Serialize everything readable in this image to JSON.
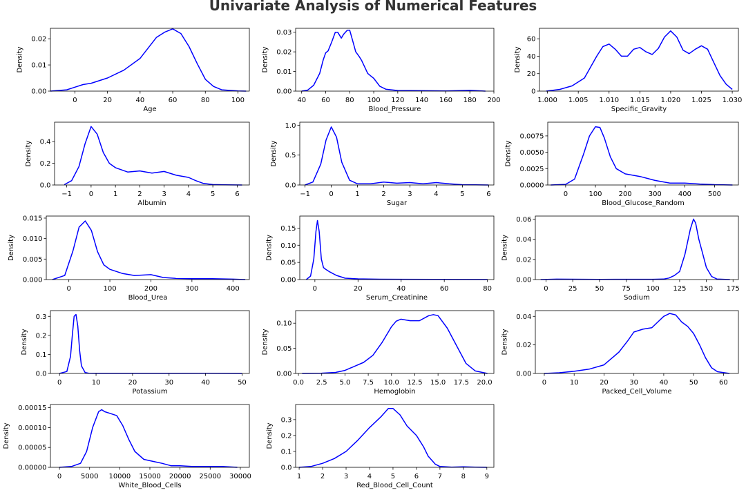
{
  "title": "Univariate Analysis of Numerical Features",
  "line_color": "#0000ff",
  "chart_data": [
    {
      "type": "line",
      "xlabel": "Age",
      "ylabel": "Density",
      "xlim": [
        -15,
        107
      ],
      "ylim": [
        0,
        0.024
      ],
      "xticks": [
        0,
        20,
        40,
        60,
        80,
        100
      ],
      "yticks": [
        0,
        0.01,
        0.02
      ],
      "ytick_labels": [
        "0.00",
        "0.01",
        "0.02"
      ],
      "x": [
        -15,
        -5,
        0,
        5,
        10,
        20,
        30,
        40,
        45,
        50,
        55,
        60,
        65,
        70,
        75,
        80,
        85,
        90,
        100,
        105
      ],
      "y": [
        0,
        0.0005,
        0.0015,
        0.0025,
        0.003,
        0.005,
        0.008,
        0.0125,
        0.0165,
        0.0205,
        0.0225,
        0.0238,
        0.022,
        0.017,
        0.0105,
        0.0045,
        0.0018,
        0.0005,
        5e-05,
        0
      ]
    },
    {
      "type": "line",
      "xlabel": "Blood_Pressure",
      "ylabel": "Density",
      "xlim": [
        35,
        200
      ],
      "ylim": [
        0,
        0.032
      ],
      "xticks": [
        40,
        60,
        80,
        100,
        120,
        140,
        160,
        180,
        200
      ],
      "yticks": [
        0,
        0.01,
        0.02,
        0.03
      ],
      "ytick_labels": [
        "0.00",
        "0.01",
        "0.02",
        "0.03"
      ],
      "x": [
        40,
        45,
        50,
        55,
        58,
        60,
        62,
        65,
        68,
        70,
        73,
        75,
        78,
        80,
        83,
        85,
        88,
        90,
        95,
        98,
        100,
        105,
        110,
        120,
        140,
        160,
        180,
        193
      ],
      "y": [
        0,
        0.0005,
        0.003,
        0.009,
        0.016,
        0.0195,
        0.0205,
        0.025,
        0.03,
        0.03,
        0.027,
        0.029,
        0.031,
        0.031,
        0.0245,
        0.02,
        0.0175,
        0.0155,
        0.009,
        0.0075,
        0.0065,
        0.0025,
        0.001,
        0.0003,
        0.0002,
        0.0001,
        0.0004,
        0
      ]
    },
    {
      "type": "line",
      "xlabel": "Specific_Gravity",
      "ylabel": "Density",
      "xlim": [
        0.9987,
        1.031
      ],
      "ylim": [
        0,
        72
      ],
      "xticks": [
        1.0,
        1.005,
        1.01,
        1.015,
        1.02,
        1.025,
        1.03
      ],
      "yticks": [
        0,
        20,
        40,
        60
      ],
      "ytick_labels": [
        "0",
        "20",
        "40",
        "60"
      ],
      "xtick_labels": [
        "1.000",
        "1.005",
        "1.010",
        "1.015",
        "1.020",
        "1.025",
        "1.030"
      ],
      "x": [
        0.9998,
        1.002,
        1.004,
        1.006,
        1.008,
        1.009,
        1.01,
        1.011,
        1.012,
        1.013,
        1.014,
        1.015,
        1.016,
        1.017,
        1.018,
        1.019,
        1.02,
        1.021,
        1.022,
        1.023,
        1.024,
        1.025,
        1.026,
        1.027,
        1.028,
        1.029,
        1.03
      ],
      "y": [
        0,
        2,
        6,
        15,
        40,
        51,
        54,
        48,
        40,
        40,
        48,
        50,
        45,
        42,
        49,
        62,
        69,
        62,
        47,
        43,
        48,
        52,
        48,
        33,
        18,
        8,
        2
      ]
    },
    {
      "type": "line",
      "xlabel": "Albumin",
      "ylabel": "Density",
      "xlim": [
        -1.5,
        6.5
      ],
      "ylim": [
        0,
        0.58
      ],
      "xticks": [
        -1,
        0,
        1,
        2,
        3,
        4,
        5,
        6
      ],
      "yticks": [
        0,
        0.2,
        0.4
      ],
      "ytick_labels": [
        "0.0",
        "0.2",
        "0.4"
      ],
      "xtick_labels": [
        "−1",
        "0",
        "1",
        "2",
        "3",
        "4",
        "5",
        "6"
      ],
      "x": [
        -1.1,
        -0.8,
        -0.5,
        -0.25,
        0,
        0.25,
        0.5,
        0.75,
        1,
        1.5,
        2,
        2.5,
        3,
        3.5,
        4,
        4.3,
        4.6,
        5,
        5.5,
        6.2
      ],
      "y": [
        0.003,
        0.04,
        0.17,
        0.38,
        0.54,
        0.47,
        0.3,
        0.2,
        0.16,
        0.12,
        0.13,
        0.11,
        0.125,
        0.09,
        0.07,
        0.04,
        0.015,
        0.004,
        0.001,
        0
      ]
    },
    {
      "type": "line",
      "xlabel": "Sugar",
      "ylabel": "Density",
      "xlim": [
        -1.2,
        6.2
      ],
      "ylim": [
        0,
        1.05
      ],
      "xticks": [
        -1,
        0,
        1,
        2,
        3,
        4,
        5,
        6
      ],
      "yticks": [
        0,
        0.5,
        1.0
      ],
      "ytick_labels": [
        "0.0",
        "0.5",
        "1.0"
      ],
      "xtick_labels": [
        "−1",
        "0",
        "1",
        "2",
        "3",
        "4",
        "5",
        "6"
      ],
      "x": [
        -1,
        -0.7,
        -0.4,
        -0.2,
        0,
        0.2,
        0.4,
        0.7,
        1,
        1.5,
        2,
        2.5,
        3,
        3.5,
        4,
        4.5,
        5,
        5.5,
        6
      ],
      "y": [
        0,
        0.05,
        0.35,
        0.75,
        0.97,
        0.8,
        0.38,
        0.08,
        0.02,
        0.02,
        0.05,
        0.03,
        0.04,
        0.02,
        0.04,
        0.02,
        0.005,
        0.002,
        0
      ]
    },
    {
      "type": "line",
      "xlabel": "Blood_Glucose_Random",
      "ylabel": "Density",
      "xlim": [
        -60,
        580
      ],
      "ylim": [
        0,
        0.0096
      ],
      "xticks": [
        0,
        100,
        200,
        300,
        400,
        500
      ],
      "yticks": [
        0,
        0.0025,
        0.005,
        0.0075
      ],
      "ytick_labels": [
        "0.0000",
        "0.0025",
        "0.0050",
        "0.0075"
      ],
      "x": [
        -50,
        0,
        30,
        60,
        80,
        100,
        115,
        130,
        150,
        170,
        200,
        250,
        300,
        350,
        400,
        450,
        500,
        560
      ],
      "y": [
        0,
        0.0001,
        0.0009,
        0.0047,
        0.0075,
        0.0089,
        0.0088,
        0.0072,
        0.0043,
        0.0025,
        0.0017,
        0.0013,
        0.0007,
        0.0003,
        0.0003,
        0.00015,
        5e-05,
        0
      ]
    },
    {
      "type": "line",
      "xlabel": "Blood_Urea",
      "ylabel": "Density",
      "xlim": [
        -55,
        440
      ],
      "ylim": [
        0,
        0.0155
      ],
      "xticks": [
        0,
        100,
        200,
        300,
        400
      ],
      "yticks": [
        0,
        0.005,
        0.01,
        0.015
      ],
      "ytick_labels": [
        "0.000",
        "0.005",
        "0.010",
        "0.015"
      ],
      "x": [
        -40,
        -10,
        10,
        25,
        40,
        55,
        70,
        85,
        100,
        130,
        160,
        200,
        230,
        260,
        300,
        350,
        400,
        430
      ],
      "y": [
        0,
        0.001,
        0.007,
        0.0128,
        0.0143,
        0.012,
        0.0068,
        0.0036,
        0.0025,
        0.0015,
        0.001,
        0.0012,
        0.0005,
        0.0003,
        0.0002,
        0.0002,
        0.0001,
        0
      ]
    },
    {
      "type": "line",
      "xlabel": "Serum_Creatinine",
      "ylabel": "Density",
      "xlim": [
        -7,
        83
      ],
      "ylim": [
        0,
        0.185
      ],
      "xticks": [
        0,
        20,
        40,
        60,
        80
      ],
      "yticks": [
        0,
        0.05,
        0.1,
        0.15
      ],
      "ytick_labels": [
        "0.00",
        "0.05",
        "0.10",
        "0.15"
      ],
      "x": [
        -4,
        -2,
        -0.5,
        0.5,
        1.2,
        2,
        3,
        4,
        5,
        7,
        10,
        14,
        20,
        30,
        40,
        60,
        80
      ],
      "y": [
        0,
        0.01,
        0.06,
        0.14,
        0.172,
        0.14,
        0.06,
        0.035,
        0.03,
        0.022,
        0.012,
        0.004,
        0.002,
        0.001,
        0.0008,
        0.0005,
        0.0002
      ]
    },
    {
      "type": "line",
      "xlabel": "Sodium",
      "ylabel": "Density",
      "xlim": [
        -10,
        180
      ],
      "ylim": [
        0,
        0.063
      ],
      "xticks": [
        0,
        25,
        50,
        75,
        100,
        125,
        150,
        175
      ],
      "yticks": [
        0,
        0.02,
        0.04,
        0.06
      ],
      "ytick_labels": [
        "0.00",
        "0.02",
        "0.04",
        "0.06"
      ],
      "x": [
        -5,
        10,
        50,
        100,
        110,
        115,
        120,
        125,
        130,
        135,
        138,
        140,
        143,
        146,
        150,
        155,
        160,
        172
      ],
      "y": [
        0,
        0.0004,
        0.0002,
        0.0003,
        0.0005,
        0.0015,
        0.004,
        0.008,
        0.025,
        0.05,
        0.06,
        0.056,
        0.04,
        0.028,
        0.012,
        0.003,
        0.0005,
        0
      ]
    },
    {
      "type": "line",
      "xlabel": "Potassium",
      "ylabel": "Density",
      "xlim": [
        -2.5,
        52
      ],
      "ylim": [
        0,
        0.33
      ],
      "xticks": [
        0,
        10,
        20,
        30,
        40,
        50
      ],
      "yticks": [
        0,
        0.1,
        0.2,
        0.3
      ],
      "ytick_labels": [
        "0.0",
        "0.1",
        "0.2",
        "0.3"
      ],
      "x": [
        0,
        2,
        3,
        3.5,
        4,
        4.5,
        5,
        5.5,
        6,
        7,
        8,
        10,
        20,
        30,
        40,
        50
      ],
      "y": [
        0,
        0.01,
        0.09,
        0.2,
        0.3,
        0.31,
        0.25,
        0.12,
        0.04,
        0.005,
        0.001,
        0.0005,
        0.0005,
        0.0003,
        0.0008,
        0
      ]
    },
    {
      "type": "line",
      "xlabel": "Hemoglobin",
      "ylabel": "Density",
      "xlim": [
        -0.3,
        21
      ],
      "ylim": [
        0,
        0.125
      ],
      "xticks": [
        0,
        2.5,
        5,
        7.5,
        10,
        12.5,
        15,
        17.5,
        20
      ],
      "yticks": [
        0,
        0.05,
        0.1
      ],
      "ytick_labels": [
        "0.00",
        "0.05",
        "0.10"
      ],
      "xtick_labels": [
        "0.0",
        "2.5",
        "5.0",
        "7.5",
        "10.0",
        "12.5",
        "15.0",
        "17.5",
        "20.0"
      ],
      "x": [
        0.4,
        2.5,
        4,
        5,
        6,
        7,
        8,
        9,
        10,
        10.5,
        11,
        12,
        13,
        14,
        14.5,
        15,
        16,
        17,
        18,
        19,
        20.3
      ],
      "y": [
        0,
        0.0005,
        0.002,
        0.006,
        0.014,
        0.022,
        0.036,
        0.062,
        0.093,
        0.104,
        0.108,
        0.105,
        0.105,
        0.115,
        0.117,
        0.115,
        0.09,
        0.055,
        0.02,
        0.005,
        0
      ]
    },
    {
      "type": "line",
      "xlabel": "Packed_Cell_Volume",
      "ylabel": "Density",
      "xlim": [
        -3,
        65
      ],
      "ylim": [
        0,
        0.044
      ],
      "xticks": [
        0,
        10,
        20,
        30,
        40,
        50,
        60
      ],
      "yticks": [
        0,
        0.02,
        0.04
      ],
      "ytick_labels": [
        "0.00",
        "0.02",
        "0.04"
      ],
      "x": [
        0,
        5,
        10,
        15,
        20,
        25,
        28,
        30,
        33,
        36,
        38,
        40,
        42,
        44,
        46,
        48,
        50,
        52,
        54,
        56,
        58,
        62
      ],
      "y": [
        0,
        0.0005,
        0.0015,
        0.003,
        0.006,
        0.015,
        0.023,
        0.029,
        0.031,
        0.032,
        0.036,
        0.04,
        0.042,
        0.041,
        0.036,
        0.033,
        0.028,
        0.02,
        0.011,
        0.004,
        0.0012,
        0
      ]
    },
    {
      "type": "line",
      "xlabel": "White_Blood_Cells",
      "ylabel": "Density",
      "xlim": [
        -1500,
        31500
      ],
      "ylim": [
        0,
        0.000158
      ],
      "xticks": [
        0,
        5000,
        10000,
        15000,
        20000,
        25000,
        30000
      ],
      "yticks": [
        0,
        5e-05,
        0.0001,
        0.00015
      ],
      "ytick_labels": [
        "0.00000",
        "0.00005",
        "0.00010",
        "0.00015"
      ],
      "x": [
        0,
        2000,
        3500,
        4500,
        5500,
        6500,
        7000,
        7500,
        8500,
        9500,
        10500,
        11500,
        12500,
        14000,
        15500,
        17000,
        18500,
        20000,
        22000,
        25000,
        27000,
        29500
      ],
      "y": [
        0,
        2e-06,
        1e-05,
        4e-05,
        0.0001,
        0.00014,
        0.000145,
        0.00014,
        0.000135,
        0.00013,
        0.000105,
        7e-05,
        4e-05,
        2e-05,
        1.5e-05,
        1e-05,
        4e-06,
        4e-06,
        2e-06,
        2e-06,
        2e-06,
        0
      ]
    },
    {
      "type": "line",
      "xlabel": "Red_Blood_Cell_Count",
      "ylabel": "Density",
      "xlim": [
        0.85,
        9.3
      ],
      "ylim": [
        0,
        0.395
      ],
      "xticks": [
        1,
        2,
        3,
        4,
        5,
        6,
        7,
        8,
        9
      ],
      "yticks": [
        0,
        0.1,
        0.2,
        0.3
      ],
      "ytick_labels": [
        "0.0",
        "0.1",
        "0.2",
        "0.3"
      ],
      "x": [
        1,
        1.5,
        2,
        2.5,
        3,
        3.5,
        4,
        4.5,
        4.8,
        5,
        5.3,
        5.6,
        6,
        6.3,
        6.5,
        6.8,
        7,
        7.5,
        8,
        8.5,
        9
      ],
      "y": [
        0,
        0.005,
        0.025,
        0.055,
        0.1,
        0.17,
        0.25,
        0.32,
        0.37,
        0.37,
        0.33,
        0.26,
        0.2,
        0.13,
        0.07,
        0.02,
        0.005,
        0.001,
        0.003,
        0.001,
        0
      ]
    }
  ]
}
